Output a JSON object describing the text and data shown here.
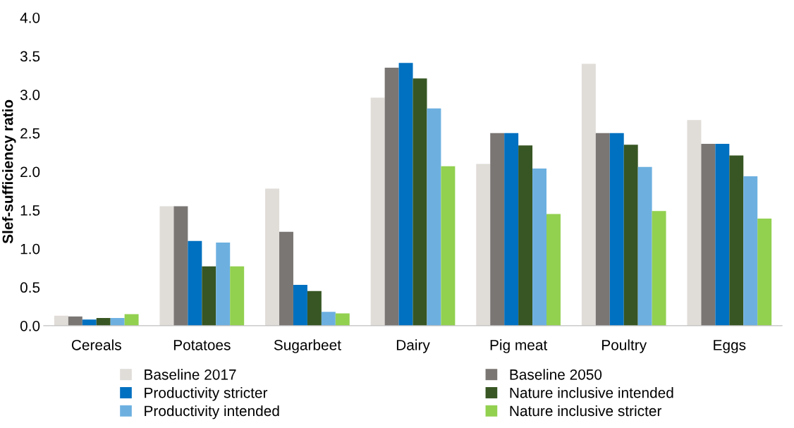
{
  "chart_data": {
    "type": "bar",
    "ylabel": "Slef-sufficiency ratio",
    "categories": [
      "Cereals",
      "Potatoes",
      "Sugarbeet",
      "Dairy",
      "Pig meat",
      "Poultry",
      "Eggs"
    ],
    "series": [
      {
        "name": "Baseline 2017",
        "color": "#e0dcd8",
        "values": [
          0.13,
          1.55,
          1.78,
          2.96,
          2.1,
          3.4,
          2.67
        ]
      },
      {
        "name": "Baseline 2050",
        "color": "#7a7674",
        "values": [
          0.12,
          1.55,
          1.22,
          3.35,
          2.5,
          2.5,
          2.36
        ]
      },
      {
        "name": "Productivity stricter",
        "color": "#0070c0",
        "values": [
          0.08,
          1.1,
          0.53,
          3.41,
          2.5,
          2.5,
          2.36
        ]
      },
      {
        "name": "Nature inclusive intended",
        "color": "#375623",
        "values": [
          0.1,
          0.77,
          0.45,
          3.21,
          2.34,
          2.35,
          2.21
        ]
      },
      {
        "name": "Productivity intended",
        "color": "#6db0e0",
        "values": [
          0.1,
          1.08,
          0.18,
          2.82,
          2.04,
          2.06,
          1.94
        ]
      },
      {
        "name": "Nature inclusive stricter",
        "color": "#92d050",
        "values": [
          0.15,
          0.77,
          0.16,
          2.07,
          1.45,
          1.49,
          1.39
        ]
      }
    ],
    "ylim": [
      0,
      4
    ],
    "yticks": [
      {
        "value": 0,
        "label": "0.0"
      },
      {
        "value": 0.5,
        "label": "0.5"
      },
      {
        "value": 1,
        "label": "1.0"
      },
      {
        "value": 1.5,
        "label": "1.5"
      },
      {
        "value": 2,
        "label": "2.0"
      },
      {
        "value": 2.5,
        "label": "2.5"
      },
      {
        "value": 3,
        "label": "3.0"
      },
      {
        "value": 3.5,
        "label": "3.5"
      },
      {
        "value": 4,
        "label": "4.0"
      }
    ],
    "grid": false,
    "legend": "bottom"
  }
}
